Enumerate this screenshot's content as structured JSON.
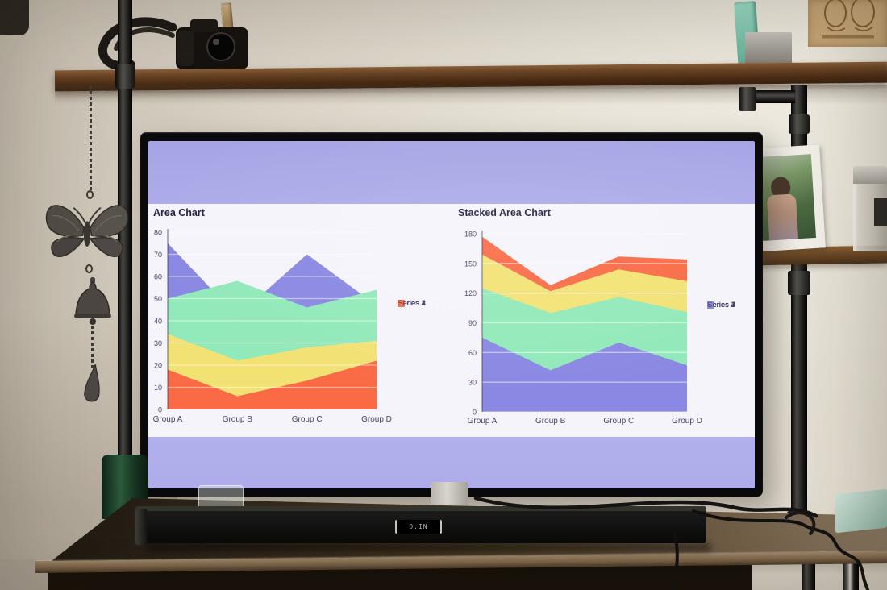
{
  "scene": {
    "description": "Photograph of a television on a pipe-frame shelf desk displaying two charts",
    "soundbar": {
      "display_text": "D:IN"
    }
  },
  "chart_data": [
    {
      "type": "area",
      "variant": "overlapping",
      "title": "Area Chart",
      "categories": [
        "Group A",
        "Group B",
        "Group C",
        "Group D"
      ],
      "series": [
        {
          "name": "Series 1",
          "color": "#8a88e2",
          "values": [
            75,
            42,
            70,
            47
          ]
        },
        {
          "name": "Series 2",
          "color": "#92e9b9",
          "values": [
            50,
            58,
            46,
            54
          ]
        },
        {
          "name": "Series 3",
          "color": "#f2e274",
          "values": [
            34,
            22,
            28,
            31
          ]
        },
        {
          "name": "Series 4",
          "color": "#fa6a45",
          "values": [
            18,
            6,
            13,
            22
          ]
        }
      ],
      "ylim": [
        0,
        80
      ],
      "yticks": [
        0,
        10,
        20,
        30,
        40,
        50,
        60,
        70,
        80
      ],
      "grid": true,
      "legend_position": "right",
      "legend_order": [
        "Series 1",
        "Series 2",
        "Series 3",
        "Series 4"
      ]
    },
    {
      "type": "area",
      "variant": "stacked",
      "title": "Stacked Area Chart",
      "categories": [
        "Group A",
        "Group B",
        "Group C",
        "Group D"
      ],
      "series": [
        {
          "name": "Series 1",
          "color": "#8a88e2",
          "values": [
            75,
            42,
            70,
            47
          ]
        },
        {
          "name": "Series 2",
          "color": "#92e9b9",
          "values": [
            50,
            58,
            46,
            54
          ]
        },
        {
          "name": "Series 3",
          "color": "#f2e274",
          "values": [
            34,
            22,
            28,
            31
          ]
        },
        {
          "name": "Series 4",
          "color": "#fa6a45",
          "values": [
            18,
            6,
            13,
            22
          ]
        }
      ],
      "ylim": [
        0,
        180
      ],
      "yticks": [
        0,
        30,
        60,
        90,
        120,
        150,
        180
      ],
      "grid": true,
      "legend_position": "right",
      "legend_order": [
        "Series 4",
        "Series 3",
        "Series 2",
        "Series 1"
      ]
    }
  ],
  "screen_colors": {
    "background": "#b1afe9",
    "panel": "#f5f4fb",
    "title_text": "#222240",
    "tick_text": "#46466a"
  },
  "decor": {
    "wall_color": "#ddd6c9",
    "shelf_wood": "#5a3a22",
    "poster_color": "#c7a678",
    "dvd_spines": [
      [
        "#8a5ca0",
        84,
        13
      ],
      [
        "#141414",
        80,
        11
      ],
      [
        "#2e2e30",
        78,
        10
      ],
      [
        "#3f4a40",
        80,
        12
      ],
      [
        "#2f9e94",
        82,
        12
      ],
      [
        "#24343c",
        76,
        10
      ],
      [
        "#4a78b2",
        80,
        13
      ],
      [
        "#c4b49a",
        78,
        12
      ],
      [
        "#7c2a2e",
        80,
        11
      ],
      [
        "#e8e2d4",
        76,
        12
      ],
      [
        "#9cc4e2",
        82,
        13
      ],
      [
        "#e05a64",
        80,
        11
      ],
      [
        "#f0ece2",
        78,
        12
      ],
      [
        "#bfe6d6",
        74,
        11
      ],
      [
        "#e87e90",
        80,
        12
      ],
      [
        "#84b4d6",
        78,
        11
      ],
      [
        "#ece6da",
        76,
        12
      ],
      [
        "#c94444",
        82,
        12
      ],
      [
        "#caba9c",
        74,
        11
      ],
      [
        "#f2eee6",
        78,
        13
      ],
      [
        "#e84a78",
        80,
        11
      ],
      [
        "#2eb0a6",
        82,
        12
      ],
      [
        "#5878c2",
        78,
        12
      ],
      [
        "#d04242",
        80,
        11
      ],
      [
        "#f0ede4",
        76,
        12
      ],
      [
        "#e0687a",
        78,
        11
      ],
      [
        "#b83434",
        80,
        12
      ],
      [
        "#cabb9e",
        74,
        11
      ],
      [
        "#6e2428",
        78,
        11
      ],
      [
        "#e8c84e",
        80,
        12
      ],
      [
        "#d84848",
        82,
        12
      ],
      [
        "#26419e",
        80,
        12
      ],
      [
        "#9a4aa2",
        78,
        11
      ],
      [
        "#2aa49a",
        76,
        11
      ],
      [
        "#202a48",
        78,
        11
      ],
      [
        "#c04884",
        80,
        12
      ],
      [
        "#eee9e0",
        76,
        12
      ],
      [
        "#9a9890",
        74,
        11
      ],
      [
        "#52a868",
        78,
        12
      ],
      [
        "#f0ece4",
        76,
        12
      ],
      [
        "#ddd6c8",
        74,
        11
      ],
      [
        "#e88a98",
        76,
        11
      ],
      [
        "#f2efe8",
        78,
        12
      ],
      [
        "#8a8880",
        74,
        11
      ],
      [
        "#1a1a1c",
        80,
        11
      ],
      [
        "#141416",
        82,
        11
      ],
      [
        "#2a2624",
        78,
        10
      ],
      [
        "#8a5a34",
        76,
        11
      ],
      [
        "#c09a62",
        84,
        13
      ]
    ]
  }
}
